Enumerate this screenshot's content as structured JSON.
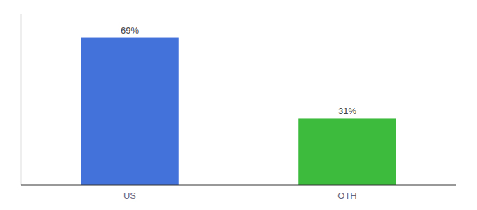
{
  "chart_data": {
    "type": "bar",
    "categories": [
      "US",
      "OTH"
    ],
    "values": [
      69,
      31
    ],
    "value_labels": [
      "69%",
      "31%"
    ],
    "colors": [
      "#4472db",
      "#3dbb3d"
    ],
    "ylim": [
      0,
      80
    ],
    "data_labels": true,
    "tick_labels": "x"
  }
}
